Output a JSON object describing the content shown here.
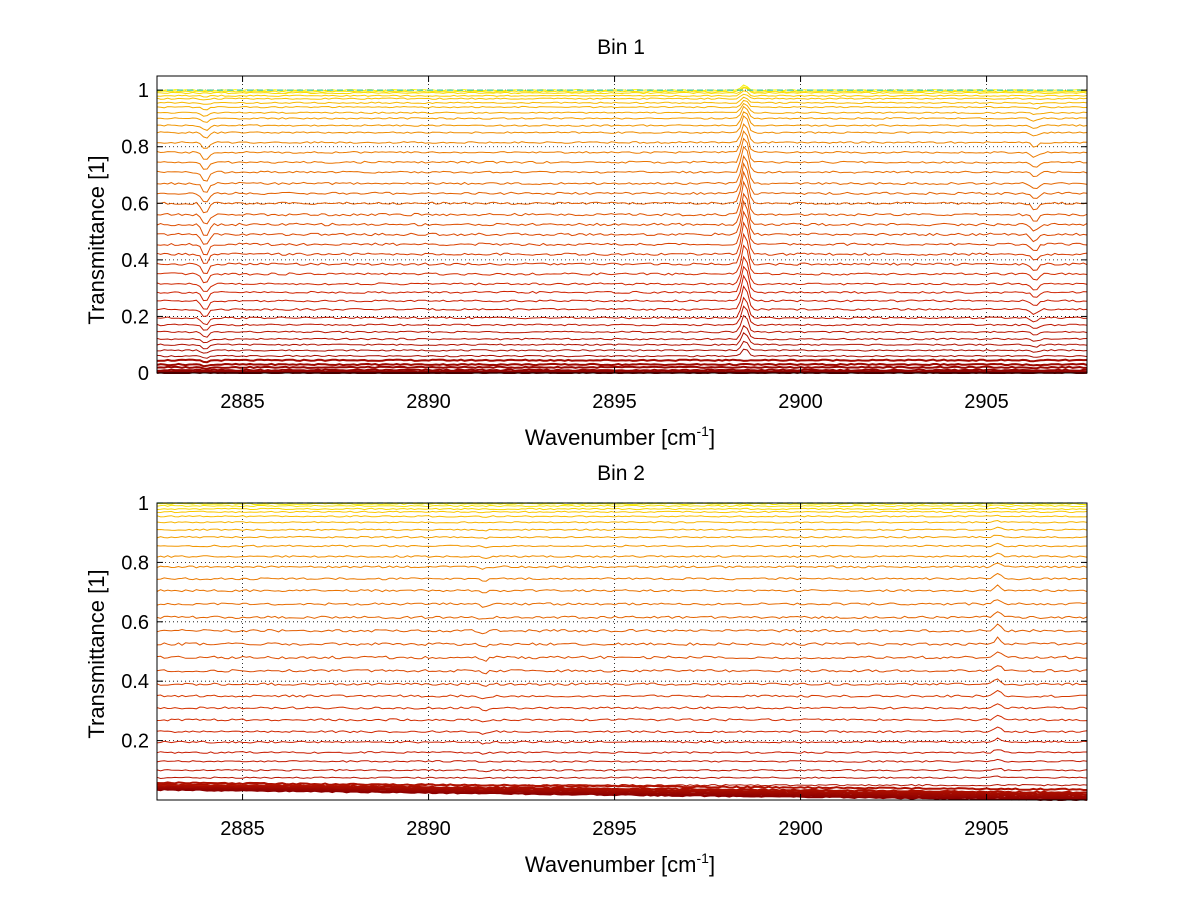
{
  "chart_data": [
    {
      "type": "line",
      "title": "Bin 1",
      "xlabel": "Wavenumber [cm",
      "xlabel_sup": "-1",
      "xlabel_tail": "]",
      "ylabel": "Transmittance [1]",
      "xlim": [
        2882.7,
        2907.7
      ],
      "ylim": [
        0,
        1.05
      ],
      "xticks": [
        2885,
        2890,
        2895,
        2900,
        2905
      ],
      "xtick_labels": [
        "2885",
        "2890",
        "2895",
        "2900",
        "2905"
      ],
      "yticks": [
        0,
        0.2,
        0.4,
        0.6,
        0.8,
        1
      ],
      "ytick_labels": [
        "0",
        "0.2",
        "0.4",
        "0.6",
        "0.8",
        "1"
      ],
      "grid": true,
      "colormap": "dark red to yellow",
      "series_levels": [
        0.0,
        0.005,
        0.01,
        0.02,
        0.03,
        0.045,
        0.06,
        0.08,
        0.1,
        0.12,
        0.145,
        0.17,
        0.195,
        0.225,
        0.255,
        0.285,
        0.315,
        0.35,
        0.385,
        0.42,
        0.455,
        0.49,
        0.525,
        0.56,
        0.6,
        0.635,
        0.67,
        0.71,
        0.745,
        0.78,
        0.815,
        0.85,
        0.875,
        0.9,
        0.92,
        0.94,
        0.955,
        0.97,
        0.98,
        0.99,
        0.995,
        1.0
      ],
      "features": [
        {
          "x": 2884.0,
          "depth": 0.04
        },
        {
          "x": 2898.5,
          "height": 0.12
        },
        {
          "x": 2906.3,
          "depth": 0.025
        }
      ]
    },
    {
      "type": "line",
      "title": "Bin 2",
      "xlabel": "Wavenumber [cm",
      "xlabel_sup": "-1",
      "xlabel_tail": "]",
      "ylabel": "Transmittance [1]",
      "xlim": [
        2882.7,
        2907.7
      ],
      "ylim": [
        0,
        1.0
      ],
      "xticks": [
        2885,
        2890,
        2895,
        2900,
        2905
      ],
      "xtick_labels": [
        "2885",
        "2890",
        "2895",
        "2900",
        "2905"
      ],
      "yticks": [
        0.2,
        0.4,
        0.6,
        0.8,
        1
      ],
      "ytick_labels": [
        "0.2",
        "0.4",
        "0.6",
        "0.8",
        "1"
      ],
      "grid": true,
      "colormap": "dark red to yellow",
      "series_levels": [
        0.0,
        0.004,
        0.008,
        0.012,
        0.016,
        0.02,
        0.025,
        0.035,
        0.05,
        0.075,
        0.1,
        0.13,
        0.16,
        0.195,
        0.23,
        0.27,
        0.31,
        0.35,
        0.39,
        0.435,
        0.48,
        0.525,
        0.57,
        0.615,
        0.66,
        0.705,
        0.745,
        0.785,
        0.82,
        0.855,
        0.885,
        0.91,
        0.935,
        0.955,
        0.97,
        0.98,
        0.99,
        0.997
      ],
      "features": [
        {
          "x": 2905.3,
          "height": 0.02
        },
        {
          "x": 2891.5,
          "depth": 0.01
        }
      ]
    }
  ]
}
